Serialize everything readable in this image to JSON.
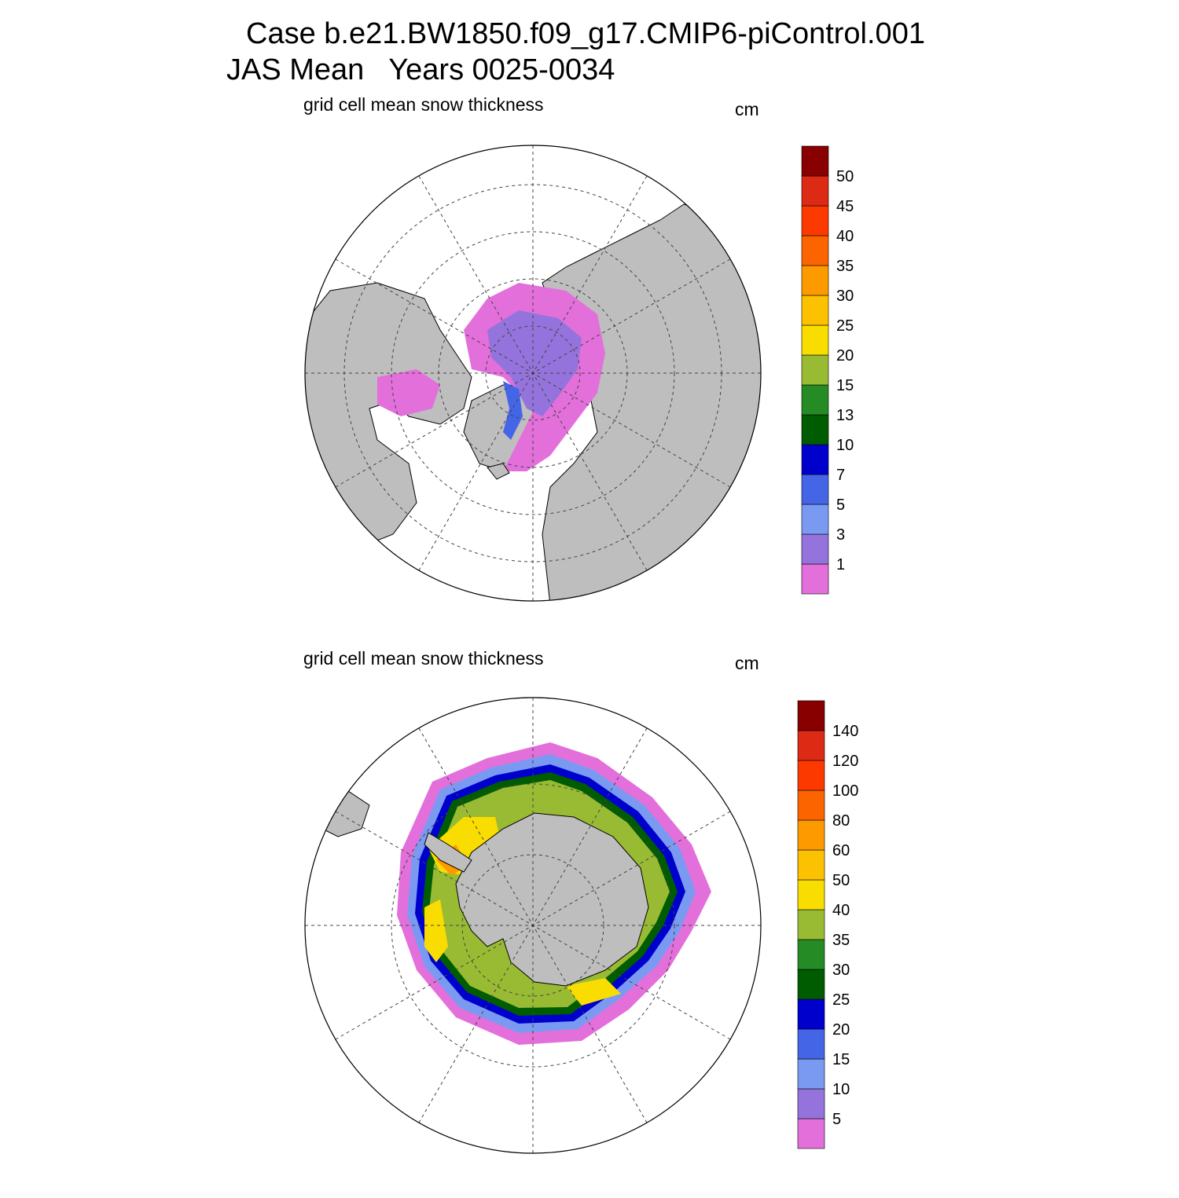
{
  "header": {
    "title_line1": "Case b.e21.BW1850.f09_g17.CMIP6-piControl.001",
    "title_line2": "JAS Mean   Years 0025-0034"
  },
  "panels": [
    {
      "id": "north",
      "variable_label": "grid cell mean snow thickness",
      "units_label": "cm",
      "colorbar": {
        "labels": [
          "1",
          "3",
          "5",
          "7",
          "10",
          "13",
          "15",
          "20",
          "25",
          "30",
          "35",
          "40",
          "45",
          "50"
        ],
        "colors": [
          "#e36fdb",
          "#9474dc",
          "#7a9af2",
          "#4466e6",
          "#0000cc",
          "#005c00",
          "#258b25",
          "#99bb33",
          "#f9dd00",
          "#fcc100",
          "#fc9a00",
          "#fc6400",
          "#fc3a00",
          "#dd2a14",
          "#880000"
        ]
      }
    },
    {
      "id": "south",
      "variable_label": "grid cell mean snow thickness",
      "units_label": "cm",
      "colorbar": {
        "labels": [
          "5",
          "10",
          "15",
          "20",
          "25",
          "30",
          "35",
          "40",
          "50",
          "60",
          "80",
          "100",
          "120",
          "140"
        ],
        "colors": [
          "#e36fdb",
          "#9474dc",
          "#7a9af2",
          "#4466e6",
          "#0000cc",
          "#005c00",
          "#258b25",
          "#99bb33",
          "#f9dd00",
          "#fcc100",
          "#fc9a00",
          "#fc6400",
          "#fc3a00",
          "#dd2a14",
          "#880000"
        ]
      }
    }
  ],
  "colors": {
    "land": "#bebebe",
    "ocean": "#ffffff",
    "grid": "#444444"
  }
}
